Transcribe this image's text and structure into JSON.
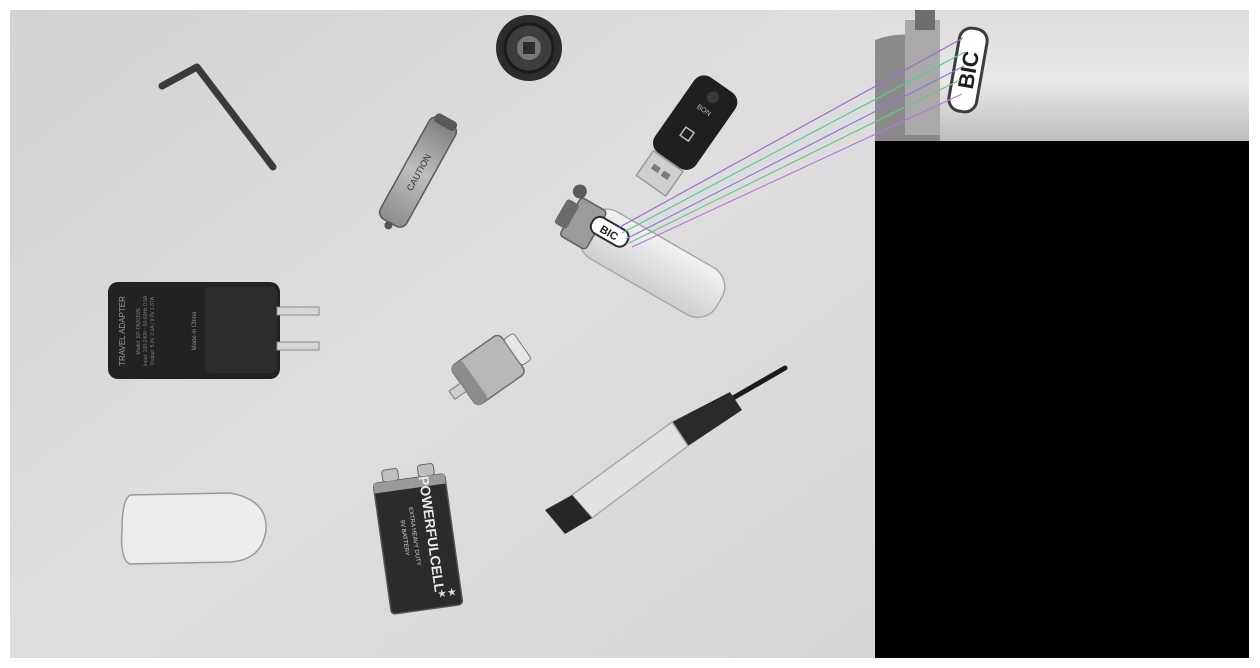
{
  "scene": {
    "charger": {
      "brand_label": "TRAVEL ADAPTER",
      "fine_print": [
        "Model: EP-TA20JWE",
        "Input: 100-240V~ 50-60Hz 0.5A",
        "Output: 5.0V 2.0A / 9.0V 1.67A"
      ],
      "made_in": "Made in China"
    },
    "battery_9v": {
      "brand": "POWERFULCELL",
      "line": "EXTRA HEAVY DUTY",
      "sub": "9V BATTERY"
    },
    "lighter": {
      "brand": "BIC"
    },
    "inset": {
      "brand": "BIC"
    },
    "aa_battery": {
      "text": "CAUTION"
    },
    "usb_stick": {
      "label": "BON"
    }
  },
  "colors": {
    "surface": "#d9d9d9",
    "background": "#ffffff",
    "inset_bg": "#000000",
    "match_lines": [
      "#9b6fc9",
      "#5bc7a1",
      "#8a7bd6",
      "#6cc48a",
      "#b27ad9"
    ]
  }
}
